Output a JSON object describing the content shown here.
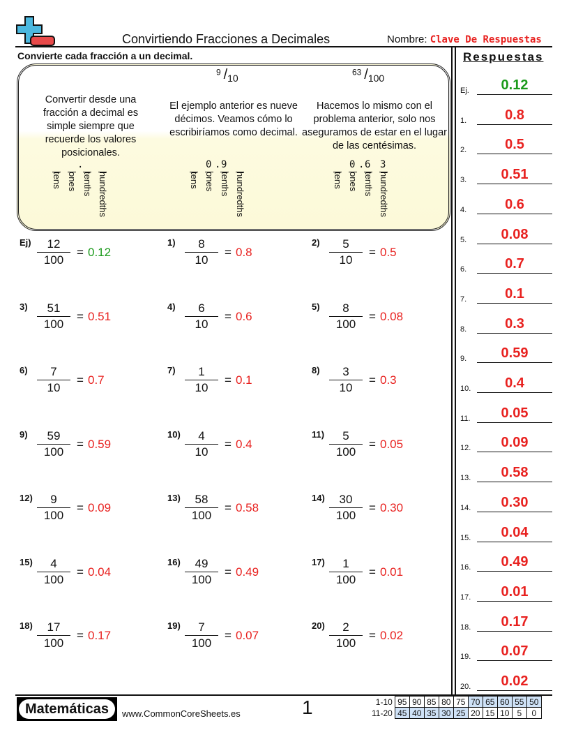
{
  "header": {
    "title": "Convirtiendo Fracciones a Decimales",
    "name_label": "Nombre:",
    "name_value": "Clave De Respuestas"
  },
  "instructions": "Convierte cada fracción a un decimal.",
  "answers_title": "Respuestas",
  "example_box": {
    "col1": {
      "text": "Convertir desde una fracción a decimal es simple siempre que recuerde los valores posicionales.",
      "digits": [
        "",
        "",
        "",
        ""
      ],
      "point": "."
    },
    "col2": {
      "frac_num": "9",
      "frac_den": "10",
      "text": "El ejemplo anterior es nueve décimos. Veamos cómo lo escribiríamos como decimal.",
      "digits": [
        "",
        "0",
        "9",
        ""
      ],
      "point": "."
    },
    "col3": {
      "frac_num": "63",
      "frac_den": "100",
      "text": "Hacemos lo mismo con el problema anterior, solo nos aseguramos de estar en el lugar de las centésimas.",
      "digits": [
        "",
        "0",
        "6",
        "3"
      ],
      "point": "."
    },
    "place_labels": [
      "tens",
      "ones",
      "tenths",
      "hundredths"
    ]
  },
  "problems": [
    {
      "label": "Ej)",
      "num": "12",
      "den": "100",
      "answer": "0.12"
    },
    {
      "label": "1)",
      "num": "8",
      "den": "10",
      "answer": "0.8"
    },
    {
      "label": "2)",
      "num": "5",
      "den": "10",
      "answer": "0.5"
    },
    {
      "label": "3)",
      "num": "51",
      "den": "100",
      "answer": "0.51"
    },
    {
      "label": "4)",
      "num": "6",
      "den": "10",
      "answer": "0.6"
    },
    {
      "label": "5)",
      "num": "8",
      "den": "100",
      "answer": "0.08"
    },
    {
      "label": "6)",
      "num": "7",
      "den": "10",
      "answer": "0.7"
    },
    {
      "label": "7)",
      "num": "1",
      "den": "10",
      "answer": "0.1"
    },
    {
      "label": "8)",
      "num": "3",
      "den": "10",
      "answer": "0.3"
    },
    {
      "label": "9)",
      "num": "59",
      "den": "100",
      "answer": "0.59"
    },
    {
      "label": "10)",
      "num": "4",
      "den": "10",
      "answer": "0.4"
    },
    {
      "label": "11)",
      "num": "5",
      "den": "100",
      "answer": "0.05"
    },
    {
      "label": "12)",
      "num": "9",
      "den": "100",
      "answer": "0.09"
    },
    {
      "label": "13)",
      "num": "58",
      "den": "100",
      "answer": "0.58"
    },
    {
      "label": "14)",
      "num": "30",
      "den": "100",
      "answer": "0.30"
    },
    {
      "label": "15)",
      "num": "4",
      "den": "100",
      "answer": "0.04"
    },
    {
      "label": "16)",
      "num": "49",
      "den": "100",
      "answer": "0.49"
    },
    {
      "label": "17)",
      "num": "1",
      "den": "100",
      "answer": "0.01"
    },
    {
      "label": "18)",
      "num": "17",
      "den": "100",
      "answer": "0.17"
    },
    {
      "label": "19)",
      "num": "7",
      "den": "100",
      "answer": "0.07"
    },
    {
      "label": "20)",
      "num": "2",
      "den": "100",
      "answer": "0.02"
    }
  ],
  "answer_key": [
    {
      "label": "Ej.",
      "value": "0.12"
    },
    {
      "label": "1.",
      "value": "0.8"
    },
    {
      "label": "2.",
      "value": "0.5"
    },
    {
      "label": "3.",
      "value": "0.51"
    },
    {
      "label": "4.",
      "value": "0.6"
    },
    {
      "label": "5.",
      "value": "0.08"
    },
    {
      "label": "6.",
      "value": "0.7"
    },
    {
      "label": "7.",
      "value": "0.1"
    },
    {
      "label": "8.",
      "value": "0.3"
    },
    {
      "label": "9.",
      "value": "0.59"
    },
    {
      "label": "10.",
      "value": "0.4"
    },
    {
      "label": "11.",
      "value": "0.05"
    },
    {
      "label": "12.",
      "value": "0.09"
    },
    {
      "label": "13.",
      "value": "0.58"
    },
    {
      "label": "14.",
      "value": "0.30"
    },
    {
      "label": "15.",
      "value": "0.04"
    },
    {
      "label": "16.",
      "value": "0.49"
    },
    {
      "label": "17.",
      "value": "0.01"
    },
    {
      "label": "18.",
      "value": "0.17"
    },
    {
      "label": "19.",
      "value": "0.07"
    },
    {
      "label": "20.",
      "value": "0.02"
    }
  ],
  "colors": {
    "answer": "#e8211f",
    "example": "#1a9a1a",
    "score_highlight": "#cfe2f7",
    "logo_plus": "#4bb8df",
    "logo_minus": "#e84a4a"
  },
  "footer": {
    "brand": "Matemáticas",
    "site": "www.CommonCoreSheets.es",
    "page": "1",
    "score_rows": [
      {
        "label": "1-10",
        "values": [
          "95",
          "90",
          "85",
          "80",
          "75",
          "70",
          "65",
          "60",
          "55",
          "50"
        ]
      },
      {
        "label": "11-20",
        "values": [
          "45",
          "40",
          "35",
          "30",
          "25",
          "20",
          "15",
          "10",
          "5",
          "0"
        ]
      }
    ]
  }
}
